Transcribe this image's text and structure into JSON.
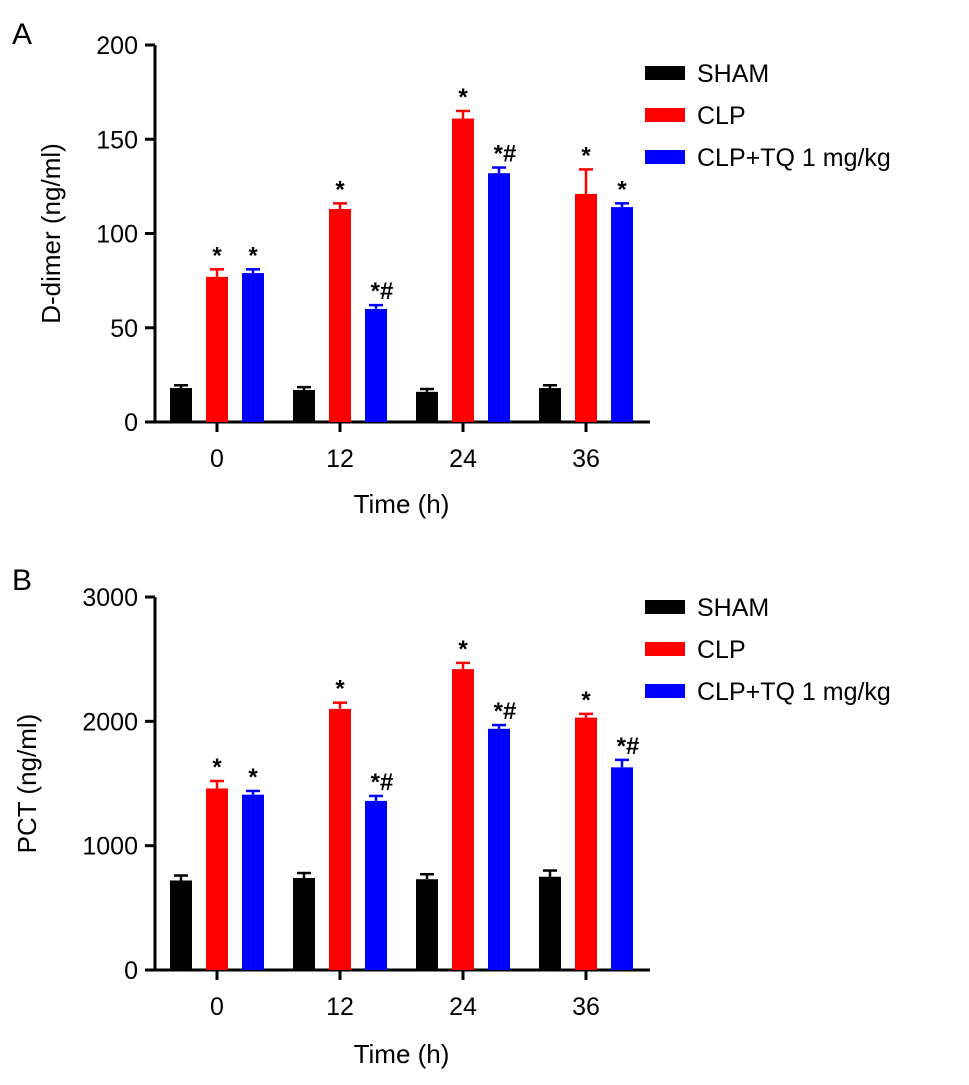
{
  "chart_data": [
    {
      "type": "bar",
      "panel_label": "A",
      "xlabel": "Time (h)",
      "ylabel": "D-dimer (ng/ml)",
      "ylim": [
        0,
        200
      ],
      "yticks": [
        0,
        50,
        100,
        150,
        200
      ],
      "categories": [
        "0",
        "12",
        "24",
        "36"
      ],
      "legend_position": "top-right",
      "series": [
        {
          "name": "SHAM",
          "color": "#000000",
          "values": [
            18,
            17,
            16,
            18
          ],
          "errors": [
            1.5,
            1.5,
            1.5,
            1.5
          ],
          "annotations": [
            "",
            "",
            "",
            ""
          ]
        },
        {
          "name": "CLP",
          "color": "#ff0000",
          "values": [
            77,
            113,
            161,
            121
          ],
          "errors": [
            4,
            3,
            4,
            13
          ],
          "annotations": [
            "*",
            "*",
            "*",
            "*"
          ]
        },
        {
          "name": "CLP+TQ 1 mg/kg",
          "color": "#0000ff",
          "values": [
            79,
            60,
            132,
            114
          ],
          "errors": [
            2,
            2,
            3,
            2
          ],
          "annotations": [
            "*",
            "*#",
            "*#",
            "*"
          ]
        }
      ]
    },
    {
      "type": "bar",
      "panel_label": "B",
      "xlabel": "Time (h)",
      "ylabel": "PCT (ng/ml)",
      "ylim": [
        0,
        3000
      ],
      "yticks": [
        0,
        1000,
        2000,
        3000
      ],
      "categories": [
        "0",
        "12",
        "24",
        "36"
      ],
      "legend_position": "top-right",
      "series": [
        {
          "name": "SHAM",
          "color": "#000000",
          "values": [
            720,
            740,
            730,
            750
          ],
          "errors": [
            40,
            40,
            40,
            50
          ],
          "annotations": [
            "",
            "",
            "",
            ""
          ]
        },
        {
          "name": "CLP",
          "color": "#ff0000",
          "values": [
            1460,
            2100,
            2420,
            2030
          ],
          "errors": [
            60,
            50,
            50,
            30
          ],
          "annotations": [
            "*",
            "*",
            "*",
            "*"
          ]
        },
        {
          "name": "CLP+TQ 1 mg/kg",
          "color": "#0000ff",
          "values": [
            1410,
            1360,
            1940,
            1630
          ],
          "errors": [
            30,
            40,
            30,
            60
          ],
          "annotations": [
            "*",
            "*#",
            "*#",
            "*#"
          ]
        }
      ]
    }
  ]
}
